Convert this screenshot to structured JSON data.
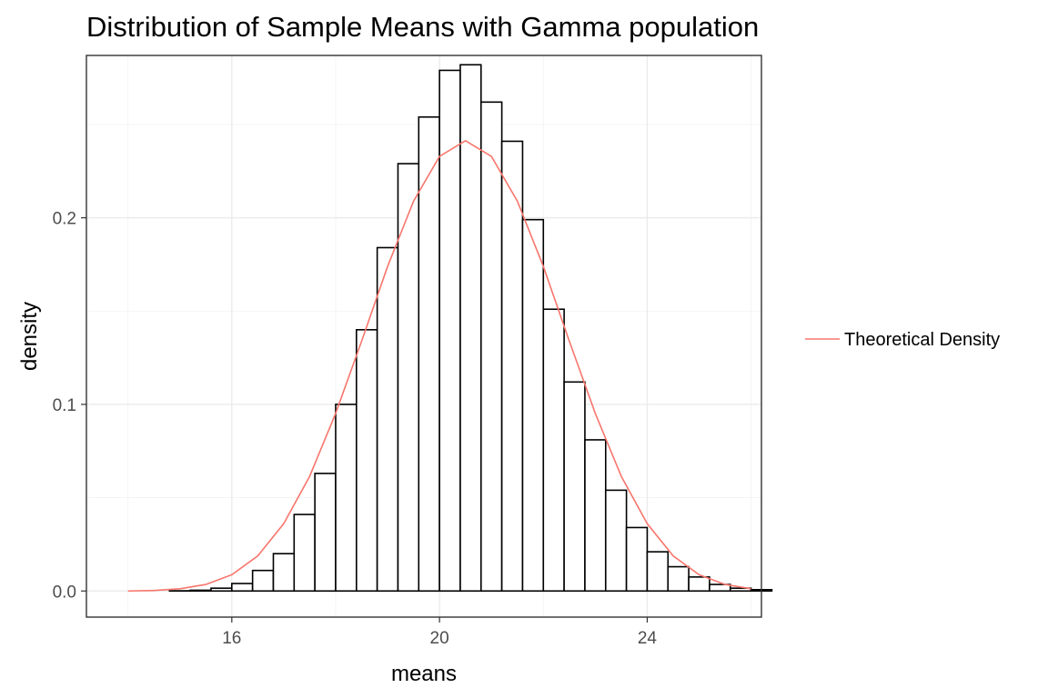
{
  "chart_data": {
    "type": "bar",
    "title": "Distribution of Sample Means with Gamma population",
    "xlabel": "means",
    "ylabel": "density",
    "xlim": [
      13.2,
      26.2
    ],
    "ylim": [
      -0.014,
      0.287
    ],
    "x_ticks": [
      16,
      20,
      24
    ],
    "x_minor_ticks": [
      14,
      18,
      22,
      26
    ],
    "y_ticks": [
      0.0,
      0.1,
      0.2
    ],
    "y_minor_ticks": [
      0.05,
      0.15,
      0.25
    ],
    "grid": true,
    "legend": {
      "position": "right",
      "entries": [
        "Theoretical Density"
      ]
    },
    "colors": {
      "line": "#F8766D",
      "bar_fill": "#ffffff",
      "bar_outline": "#000000"
    },
    "histogram": {
      "bin_width": 0.4,
      "bins": [
        {
          "x_start": 14.8,
          "x_end": 15.2,
          "density": 0.0001
        },
        {
          "x_start": 15.2,
          "x_end": 15.6,
          "density": 0.0004
        },
        {
          "x_start": 15.6,
          "x_end": 16.0,
          "density": 0.0015
        },
        {
          "x_start": 16.0,
          "x_end": 16.4,
          "density": 0.004
        },
        {
          "x_start": 16.4,
          "x_end": 16.8,
          "density": 0.011
        },
        {
          "x_start": 16.8,
          "x_end": 17.2,
          "density": 0.02
        },
        {
          "x_start": 17.2,
          "x_end": 17.6,
          "density": 0.041
        },
        {
          "x_start": 17.6,
          "x_end": 18.0,
          "density": 0.063
        },
        {
          "x_start": 18.0,
          "x_end": 18.4,
          "density": 0.1
        },
        {
          "x_start": 18.4,
          "x_end": 18.8,
          "density": 0.14
        },
        {
          "x_start": 18.8,
          "x_end": 19.2,
          "density": 0.184
        },
        {
          "x_start": 19.2,
          "x_end": 19.6,
          "density": 0.229
        },
        {
          "x_start": 19.6,
          "x_end": 20.0,
          "density": 0.254
        },
        {
          "x_start": 20.0,
          "x_end": 20.4,
          "density": 0.279
        },
        {
          "x_start": 20.4,
          "x_end": 20.8,
          "density": 0.282
        },
        {
          "x_start": 20.8,
          "x_end": 21.2,
          "density": 0.262
        },
        {
          "x_start": 21.2,
          "x_end": 21.6,
          "density": 0.241
        },
        {
          "x_start": 21.6,
          "x_end": 22.0,
          "density": 0.199
        },
        {
          "x_start": 22.0,
          "x_end": 22.4,
          "density": 0.151
        },
        {
          "x_start": 22.4,
          "x_end": 22.8,
          "density": 0.112
        },
        {
          "x_start": 22.8,
          "x_end": 23.2,
          "density": 0.081
        },
        {
          "x_start": 23.2,
          "x_end": 23.6,
          "density": 0.054
        },
        {
          "x_start": 23.6,
          "x_end": 24.0,
          "density": 0.034
        },
        {
          "x_start": 24.0,
          "x_end": 24.4,
          "density": 0.021
        },
        {
          "x_start": 24.4,
          "x_end": 24.8,
          "density": 0.013
        },
        {
          "x_start": 24.8,
          "x_end": 25.2,
          "density": 0.0075
        },
        {
          "x_start": 25.2,
          "x_end": 25.6,
          "density": 0.0035
        },
        {
          "x_start": 25.6,
          "x_end": 26.0,
          "density": 0.0015
        },
        {
          "x_start": 26.0,
          "x_end": 26.4,
          "density": 0.0007
        }
      ]
    },
    "series": [
      {
        "name": "Theoretical Density",
        "type": "line",
        "x": [
          14.0,
          14.5,
          15.0,
          15.5,
          16.0,
          16.5,
          17.0,
          17.5,
          18.0,
          18.5,
          19.0,
          19.5,
          20.0,
          20.5,
          21.0,
          21.5,
          22.0,
          22.5,
          23.0,
          23.5,
          24.0,
          24.5,
          25.0,
          25.5,
          26.0
        ],
        "y": [
          0.0,
          0.0003,
          0.0012,
          0.0035,
          0.0087,
          0.0188,
          0.0361,
          0.0615,
          0.0952,
          0.1339,
          0.1739,
          0.2089,
          0.2329,
          0.2413,
          0.2329,
          0.2089,
          0.1739,
          0.1339,
          0.0952,
          0.0615,
          0.0361,
          0.0188,
          0.0087,
          0.0035,
          0.0012
        ]
      }
    ]
  }
}
